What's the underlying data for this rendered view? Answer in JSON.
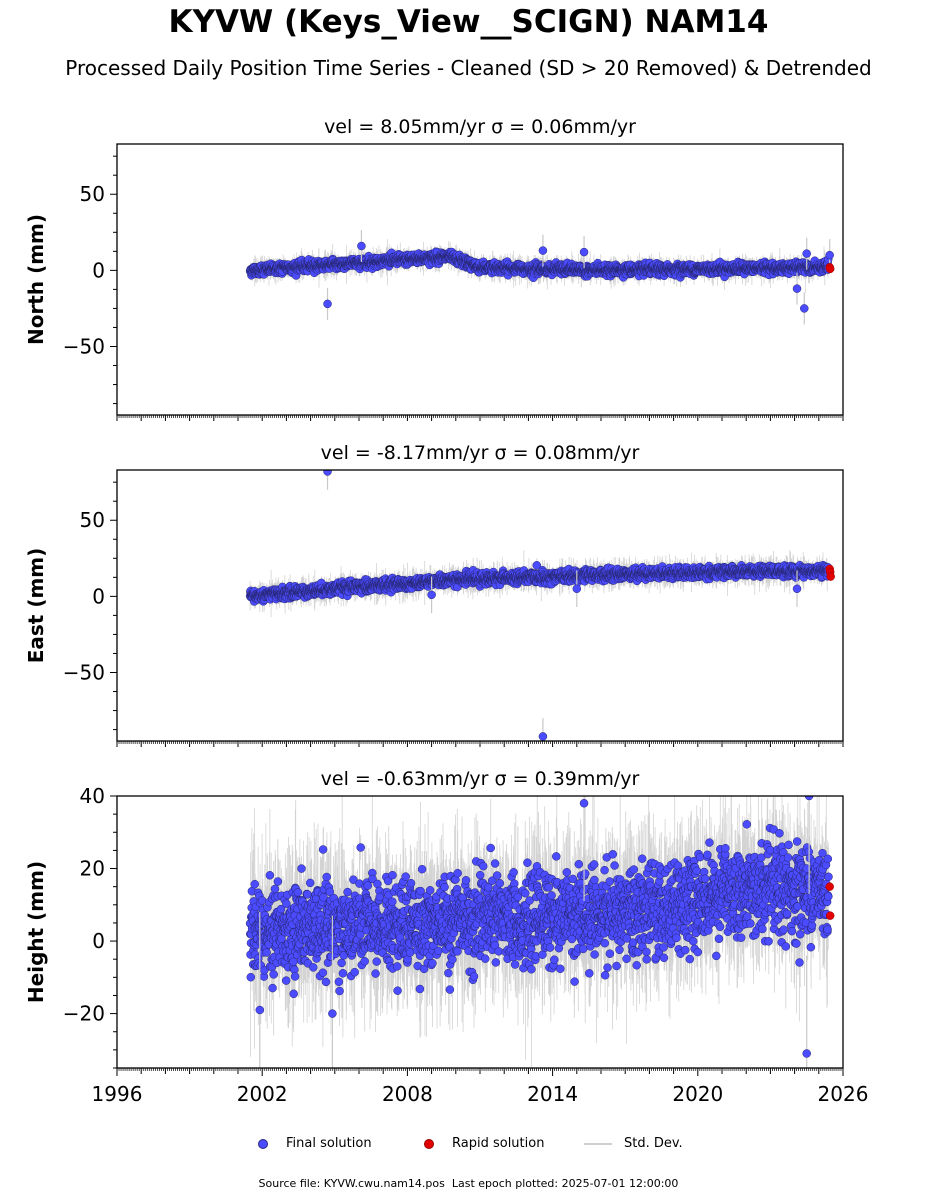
{
  "title": "KYVW (Keys_View__SCIGN) NAM14",
  "subtitle": "Processed Daily Position Time Series - Cleaned (SD > 20 Removed) & Detrended",
  "colors": {
    "final": "#4b4bff",
    "final_edge": "#26266e",
    "rapid": "#e00000",
    "stddev": "#c8c8c8"
  },
  "legend": {
    "final": "Final solution",
    "rapid": "Rapid solution",
    "stddev": "Std. Dev."
  },
  "footer": {
    "source": "Source file: KYVW.cwu.nam14.pos",
    "last_epoch": "Last epoch plotted: 2025-07-01 12:00:00"
  },
  "chart_data": [
    {
      "type": "scatter",
      "title": "vel = 8.05mm/yr   σ = 0.06mm/yr",
      "ylabel": "North (mm)",
      "xlim": [
        1996,
        2026
      ],
      "ylim": [
        -95,
        83
      ],
      "yticks": [
        -50,
        0,
        50
      ],
      "xticks": [],
      "series_start": 2001.5,
      "series_end": 2025.4,
      "trend_segments": [
        [
          2001.5,
          0
        ],
        [
          2005.0,
          4
        ],
        [
          2009.7,
          9
        ],
        [
          2011.0,
          2
        ],
        [
          2016.0,
          0
        ],
        [
          2025.4,
          2
        ]
      ],
      "noise_sd": 1.6,
      "err_sd": 3.5,
      "outliers": [
        [
          2004.7,
          -22
        ],
        [
          2006.1,
          16
        ],
        [
          2013.6,
          13
        ],
        [
          2015.3,
          12
        ],
        [
          2024.1,
          -12
        ],
        [
          2024.4,
          -25
        ],
        [
          2024.5,
          11
        ],
        [
          2025.45,
          10
        ]
      ],
      "rapid": [
        [
          2025.45,
          2
        ],
        [
          2025.47,
          1
        ]
      ]
    },
    {
      "type": "scatter",
      "title": "vel = -8.17mm/yr   σ = 0.08mm/yr",
      "ylabel": "East (mm)",
      "xlim": [
        1996,
        2026
      ],
      "ylim": [
        -95,
        83
      ],
      "yticks": [
        -50,
        0,
        50
      ],
      "xticks": [],
      "series_start": 2001.5,
      "series_end": 2025.4,
      "trend_segments": [
        [
          2001.5,
          0
        ],
        [
          2005.0,
          5
        ],
        [
          2010.0,
          11
        ],
        [
          2014.0,
          13
        ],
        [
          2018.0,
          15
        ],
        [
          2025.4,
          17
        ]
      ],
      "noise_sd": 1.8,
      "err_sd": 4,
      "outliers": [
        [
          2004.7,
          82
        ],
        [
          2009.0,
          1
        ],
        [
          2013.6,
          -92
        ],
        [
          2015.0,
          5
        ],
        [
          2024.1,
          5
        ]
      ],
      "rapid": [
        [
          2025.45,
          18
        ],
        [
          2025.47,
          16
        ],
        [
          2025.49,
          13
        ]
      ]
    },
    {
      "type": "scatter",
      "title": "vel = -0.63mm/yr   σ = 0.39mm/yr",
      "ylabel": "Height (mm)",
      "xlim": [
        1996,
        2026
      ],
      "ylim": [
        -35,
        40
      ],
      "yticks": [
        -20,
        0,
        20,
        40
      ],
      "xticks": [
        1996,
        2002,
        2008,
        2014,
        2020,
        2026
      ],
      "series_start": 2001.5,
      "series_end": 2025.4,
      "trend_segments": [
        [
          2001.5,
          3
        ],
        [
          2012.0,
          6
        ],
        [
          2018.0,
          8
        ],
        [
          2021.0,
          14
        ],
        [
          2025.4,
          14
        ]
      ],
      "noise_sd": 6,
      "err_sd": 9,
      "outliers": [
        [
          2001.9,
          -19
        ],
        [
          2004.9,
          -20
        ],
        [
          2015.3,
          38
        ],
        [
          2024.6,
          40
        ],
        [
          2024.5,
          -31
        ]
      ],
      "rapid": [
        [
          2025.45,
          15
        ],
        [
          2025.47,
          7
        ]
      ]
    }
  ]
}
